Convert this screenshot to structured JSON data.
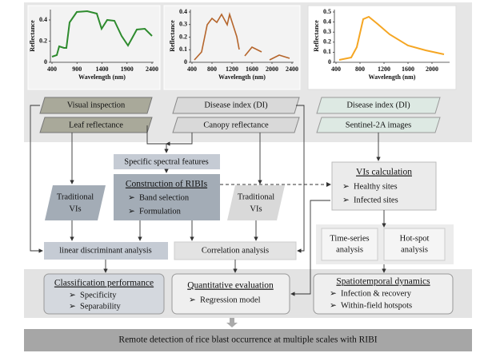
{
  "spectra": [
    {
      "y_label": "Reflectance",
      "x_label": "Wavelength (nm)",
      "yticks": [
        "0",
        "0.2",
        "0.4"
      ],
      "xticks": [
        "400",
        "900",
        "1400",
        "1900",
        "2400"
      ]
    },
    {
      "y_label": "Reflectance",
      "x_label": "Wavelength (nm)",
      "yticks": [
        "0",
        "0.1",
        "0.2",
        "0.3",
        "0.4"
      ],
      "xticks": [
        "400",
        "800",
        "1200",
        "1600",
        "2000",
        "2400"
      ]
    },
    {
      "y_label": "Reflectance",
      "x_label": "Wavelength (nm)",
      "yticks": [
        "0",
        "0.1",
        "0.2",
        "0.3",
        "0.4",
        "0.5"
      ],
      "xticks": [
        "400",
        "800",
        "1200",
        "1600",
        "2000"
      ]
    }
  ],
  "sources": [
    {
      "top": "Visual inspection",
      "bottom": "Leaf reflectance"
    },
    {
      "top": "Disease index (DI)",
      "bottom": "Canopy reflectance"
    },
    {
      "top": "Disease index (DI)",
      "bottom": "Sentinel-2A images"
    }
  ],
  "nodes": {
    "spectral_features": "Specific spectral features",
    "ribi": {
      "title": "Construction of RIBIs",
      "items": [
        "Band selection",
        "Formulation"
      ]
    },
    "vis_left": [
      "Traditional",
      "VIs"
    ],
    "vis_right": [
      "Traditional",
      "VIs"
    ],
    "vis_calc": {
      "title": "VIs calculation",
      "items": [
        "Healthy sites",
        "Infected sites"
      ]
    },
    "time_series": [
      "Time-series",
      "analysis"
    ],
    "hot_spot": [
      "Hot-spot",
      "analysis"
    ],
    "lda": "linear discriminant analysis",
    "correlation": "Correlation analysis"
  },
  "results": [
    {
      "title": "Classification performance",
      "items": [
        "Specificity",
        "Separability"
      ]
    },
    {
      "title": "Quantitative evaluation",
      "items": [
        "Regression model"
      ]
    },
    {
      "title": "Spatiotemporal dynamics",
      "items": [
        "Infection & recovery",
        "Within-field hotspots"
      ]
    }
  ],
  "conclusion": "Remote detection of rice blast occurrence at multiple scales with RIBI"
}
